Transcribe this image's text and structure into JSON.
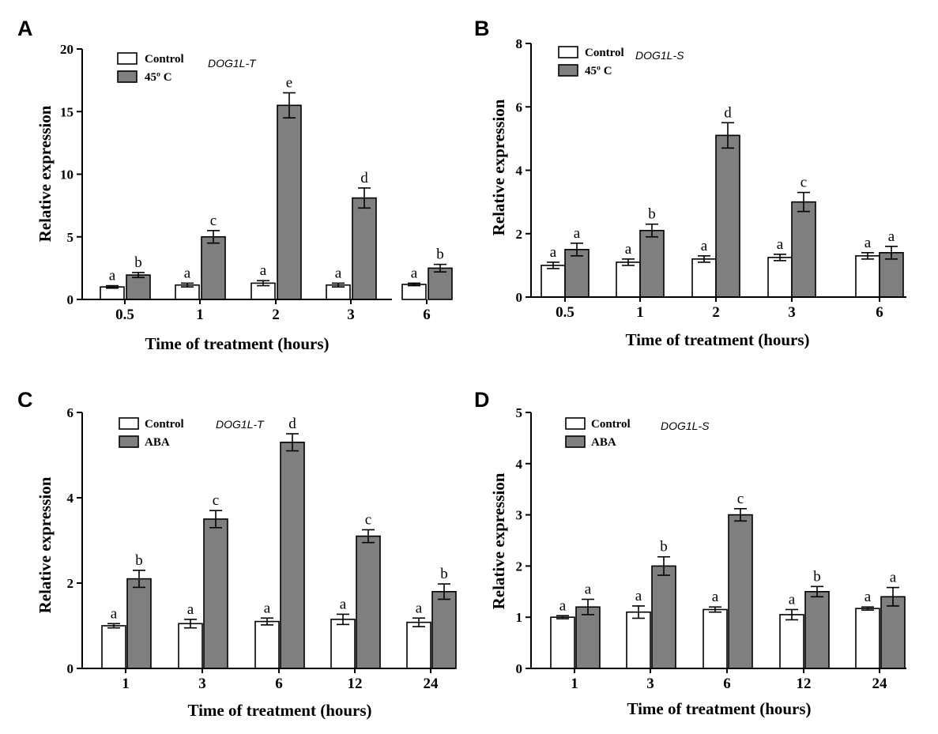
{
  "chart_data": [
    {
      "type": "bar",
      "panel": "A",
      "gene": "DOG1L-T",
      "xlabel": "Time of treatment (hours)",
      "ylabel": "Relative expression",
      "ylim": [
        0,
        20
      ],
      "yticks": [
        "0",
        "5",
        "10",
        "15",
        "20"
      ],
      "categories": [
        "0.5",
        "1",
        "2",
        "3",
        "6"
      ],
      "series": [
        {
          "name": "Control",
          "color": "#ffffff",
          "values": [
            1.0,
            1.15,
            1.3,
            1.15,
            1.2
          ],
          "errors": [
            0.1,
            0.15,
            0.2,
            0.15,
            0.1
          ],
          "labels": [
            "a",
            "a",
            "a",
            "a",
            "a"
          ]
        },
        {
          "name": "45º C",
          "color": "#7f7f7f",
          "values": [
            1.95,
            5.0,
            15.5,
            8.1,
            2.5
          ],
          "errors": [
            0.2,
            0.5,
            1.0,
            0.8,
            0.3
          ],
          "labels": [
            "b",
            "c",
            "e",
            "d",
            "b"
          ]
        }
      ]
    },
    {
      "type": "bar",
      "panel": "B",
      "gene": "DOG1L-S",
      "xlabel": "Time of treatment (hours)",
      "ylabel": "Relative expression",
      "ylim": [
        0,
        8
      ],
      "yticks": [
        "0",
        "2",
        "4",
        "6",
        "8"
      ],
      "categories": [
        "0.5",
        "1",
        "2",
        "3",
        "6"
      ],
      "series": [
        {
          "name": "Control",
          "color": "#ffffff",
          "values": [
            1.0,
            1.1,
            1.2,
            1.25,
            1.3
          ],
          "errors": [
            0.1,
            0.1,
            0.1,
            0.1,
            0.1
          ],
          "labels": [
            "a",
            "a",
            "a",
            "a",
            "a"
          ]
        },
        {
          "name": "45º C",
          "color": "#7f7f7f",
          "values": [
            1.5,
            2.1,
            5.1,
            3.0,
            1.4
          ],
          "errors": [
            0.2,
            0.2,
            0.4,
            0.3,
            0.2
          ],
          "labels": [
            "a",
            "b",
            "d",
            "c",
            "a"
          ]
        }
      ]
    },
    {
      "type": "bar",
      "panel": "C",
      "gene": "DOG1L-T",
      "xlabel": "Time of treatment (hours)",
      "ylabel": "Relative expression",
      "ylim": [
        0,
        6
      ],
      "yticks": [
        "0",
        "2",
        "4",
        "6"
      ],
      "categories": [
        "1",
        "3",
        "6",
        "12",
        "24"
      ],
      "series": [
        {
          "name": "Control",
          "color": "#ffffff",
          "values": [
            1.0,
            1.05,
            1.1,
            1.15,
            1.08
          ],
          "errors": [
            0.05,
            0.1,
            0.08,
            0.12,
            0.1
          ],
          "labels": [
            "a",
            "a",
            "a",
            "a",
            "a"
          ]
        },
        {
          "name": "ABA",
          "color": "#7f7f7f",
          "values": [
            2.1,
            3.5,
            5.3,
            3.1,
            1.8
          ],
          "errors": [
            0.2,
            0.2,
            0.2,
            0.15,
            0.18
          ],
          "labels": [
            "b",
            "c",
            "d",
            "c",
            "b"
          ]
        }
      ]
    },
    {
      "type": "bar",
      "panel": "D",
      "gene": "DOG1L-S",
      "xlabel": "Time of treatment (hours)",
      "ylabel": "Relative expression",
      "ylim": [
        0,
        5
      ],
      "yticks": [
        "0",
        "1",
        "2",
        "3",
        "4",
        "5"
      ],
      "categories": [
        "1",
        "3",
        "6",
        "12",
        "24"
      ],
      "series": [
        {
          "name": "Control",
          "color": "#ffffff",
          "values": [
            1.0,
            1.1,
            1.15,
            1.05,
            1.17
          ],
          "errors": [
            0.03,
            0.12,
            0.05,
            0.1,
            0.03
          ],
          "labels": [
            "a",
            "a",
            "a",
            "a",
            "a"
          ]
        },
        {
          "name": "ABA",
          "color": "#7f7f7f",
          "values": [
            1.2,
            2.0,
            3.0,
            1.5,
            1.4
          ],
          "errors": [
            0.15,
            0.18,
            0.12,
            0.1,
            0.18
          ],
          "labels": [
            "a",
            "b",
            "c",
            "b",
            "a"
          ]
        }
      ]
    }
  ]
}
